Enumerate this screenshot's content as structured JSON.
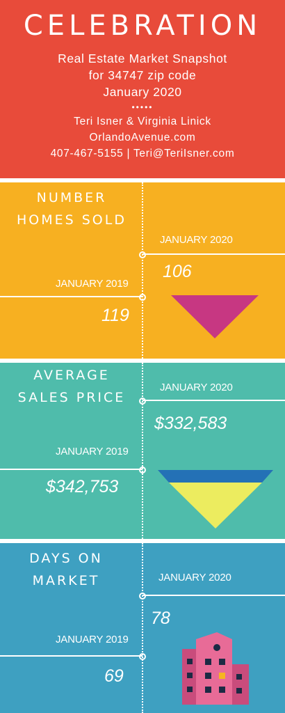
{
  "header": {
    "title": "CELEBRATION",
    "line1": "Real Estate Market Snapshot",
    "line2": "for 34747 zip code",
    "line3": "January 2020",
    "dots": "•••••",
    "agents": "Teri Isner & Virginia Linick",
    "website": "OrlandoAvenue.com",
    "contact": "407-467-5155 | Teri@TeriIsner.com"
  },
  "sections": [
    {
      "title_line1": "NUMBER",
      "title_line2": "HOMES SOLD",
      "label_2020": "JANUARY 2020",
      "value_2020": "106",
      "label_2019": "JANUARY 2019",
      "value_2019": "119",
      "icon": "down-triangle-icon",
      "color": "#c73782"
    },
    {
      "title_line1": "AVERAGE",
      "title_line2": "SALES PRICE",
      "label_2020": "JANUARY 2020",
      "value_2020": "$332,583",
      "label_2019": "JANUARY 2019",
      "value_2019": "$342,753",
      "icon": "funnel-icon",
      "colors": [
        "#2471b6",
        "#ecec5f"
      ]
    },
    {
      "title_line1": "DAYS ON",
      "title_line2": "MARKET",
      "label_2020": "JANUARY 2020",
      "value_2020": "78",
      "label_2019": "JANUARY 2019",
      "value_2019": "69",
      "icon": "building-icon",
      "colors": [
        "#e86b97",
        "#c94c7c",
        "#1d2a44",
        "#f6b421"
      ]
    }
  ],
  "colors": {
    "header": "#e84b3a",
    "panel1": "#f7b021",
    "panel2": "#4fbcab",
    "panel3": "#3ea0c1"
  }
}
